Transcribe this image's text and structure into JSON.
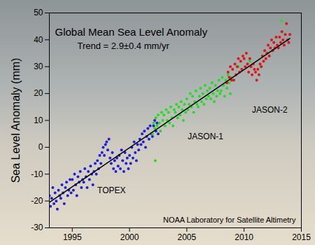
{
  "chart_data": {
    "type": "scatter",
    "title": "Global Mean Sea Level Anomaly",
    "subtitle": "Trend = 2.9±0.4 mm/yr",
    "ylabel": "Sea Level Anomaly (mm)",
    "annotations": [
      "NOAA Laboratory for Satellite Altimetry"
    ],
    "xlim": [
      1993,
      2015
    ],
    "xticks": [
      1995,
      2000,
      2005,
      2010,
      2015
    ],
    "ylim": [
      -30,
      50
    ],
    "yticks": [
      -30,
      -20,
      -10,
      0,
      10,
      20,
      30,
      40,
      50
    ],
    "grid": false,
    "marker": "circle",
    "series": [
      {
        "name": "TOPEX",
        "color": "#1f1fd6",
        "x": [
          1993.0,
          1993.1,
          1993.2,
          1993.3,
          1993.4,
          1993.5,
          1993.6,
          1993.7,
          1993.8,
          1993.9,
          1994.0,
          1994.1,
          1994.2,
          1994.3,
          1994.4,
          1994.5,
          1994.6,
          1994.7,
          1994.8,
          1994.9,
          1995.0,
          1995.1,
          1995.2,
          1995.3,
          1995.4,
          1995.5,
          1995.6,
          1995.7,
          1995.8,
          1995.9,
          1996.0,
          1996.1,
          1996.2,
          1996.3,
          1996.4,
          1996.5,
          1996.6,
          1996.7,
          1996.8,
          1996.9,
          1997.0,
          1997.1,
          1997.2,
          1997.3,
          1997.4,
          1997.5,
          1997.6,
          1997.7,
          1997.8,
          1997.9,
          1998.0,
          1998.1,
          1998.2,
          1998.3,
          1998.4,
          1998.5,
          1998.6,
          1998.7,
          1998.8,
          1998.9,
          1999.0,
          1999.1,
          1999.2,
          1999.3,
          1999.4,
          1999.5,
          1999.6,
          1999.7,
          1999.8,
          1999.9,
          2000.0,
          2000.1,
          2000.2,
          2000.3,
          2000.4,
          2000.5,
          2000.6,
          2000.7,
          2000.8,
          2000.9,
          2001.0,
          2001.1,
          2001.2,
          2001.3,
          2001.4,
          2001.5,
          2001.6,
          2001.7,
          2001.8,
          2001.9,
          2002.0,
          2002.1,
          2002.2,
          2002.3,
          2002.4,
          2002.5
        ],
        "values": [
          -18,
          -22,
          -19,
          -15,
          -21,
          -17,
          -20,
          -23,
          -16,
          -18,
          -19,
          -14,
          -17,
          -21,
          -15,
          -13,
          -18,
          -16,
          -12,
          -17,
          -12,
          -16,
          -10,
          -14,
          -18,
          -11,
          -13,
          -9,
          -15,
          -12,
          -13,
          -8,
          -11,
          -15,
          -9,
          -12,
          -7,
          -10,
          -14,
          -9,
          -6,
          -10,
          -5,
          -8,
          -3,
          -6,
          -2,
          0,
          -3,
          1,
          2,
          -1,
          3,
          -4,
          -6,
          -2,
          -8,
          -5,
          -9,
          -4,
          -7,
          -3,
          -8,
          -1,
          -5,
          -9,
          -2,
          -6,
          -4,
          -8,
          -3,
          -6,
          0,
          -4,
          2,
          -2,
          -5,
          1,
          -1,
          3,
          1,
          5,
          2,
          6,
          0,
          4,
          7,
          3,
          8,
          5,
          4,
          8,
          10,
          6,
          9,
          5
        ]
      },
      {
        "name": "JASON-1",
        "color": "#22dd22",
        "x": [
          2002.0,
          2002.1,
          2002.2,
          2002.25,
          2002.3,
          2002.4,
          2002.5,
          2002.6,
          2002.7,
          2002.8,
          2002.9,
          2003.0,
          2003.1,
          2003.2,
          2003.3,
          2003.4,
          2003.5,
          2003.6,
          2003.7,
          2003.8,
          2003.9,
          2004.0,
          2004.1,
          2004.2,
          2004.3,
          2004.4,
          2004.5,
          2004.6,
          2004.7,
          2004.8,
          2004.9,
          2005.0,
          2005.1,
          2005.2,
          2005.3,
          2005.4,
          2005.5,
          2005.6,
          2005.7,
          2005.8,
          2005.9,
          2006.0,
          2006.1,
          2006.2,
          2006.3,
          2006.4,
          2006.5,
          2006.6,
          2006.7,
          2006.8,
          2006.9,
          2007.0,
          2007.1,
          2007.2,
          2007.3,
          2007.4,
          2007.5,
          2007.6,
          2007.7,
          2007.8,
          2007.9,
          2008.0,
          2008.1,
          2008.2,
          2008.3,
          2008.4,
          2008.5,
          2008.6,
          2008.7,
          2008.8,
          2008.9,
          2009.0,
          2009.5,
          2010.5,
          2011.5,
          2012.5,
          2013.3
        ],
        "values": [
          5,
          9,
          7,
          -5,
          11,
          8,
          12,
          9,
          6,
          13,
          10,
          12,
          8,
          14,
          10,
          13,
          9,
          15,
          11,
          8,
          14,
          13,
          16,
          11,
          15,
          12,
          17,
          14,
          10,
          16,
          13,
          18,
          14,
          16,
          20,
          15,
          19,
          13,
          17,
          21,
          16,
          15,
          19,
          22,
          17,
          20,
          16,
          23,
          18,
          21,
          19,
          22,
          18,
          24,
          20,
          17,
          23,
          19,
          21,
          25,
          20,
          21,
          26,
          23,
          19,
          25,
          22,
          27,
          24,
          20,
          26,
          25,
          30,
          32,
          30,
          36,
          47
        ]
      },
      {
        "name": "JASON-2",
        "color": "#e01414",
        "x": [
          2008.5,
          2008.6,
          2008.7,
          2008.8,
          2008.9,
          2009.0,
          2009.1,
          2009.2,
          2009.3,
          2009.4,
          2009.5,
          2009.6,
          2009.7,
          2009.8,
          2009.9,
          2010.0,
          2010.1,
          2010.2,
          2010.3,
          2010.4,
          2010.5,
          2010.6,
          2010.7,
          2010.8,
          2010.9,
          2011.0,
          2011.1,
          2011.2,
          2011.3,
          2011.4,
          2011.5,
          2011.6,
          2011.7,
          2011.8,
          2011.9,
          2012.0,
          2012.1,
          2012.2,
          2012.3,
          2012.4,
          2012.5,
          2012.6,
          2012.7,
          2012.8,
          2012.9,
          2013.0,
          2013.1,
          2013.2,
          2013.3,
          2013.4,
          2013.5,
          2013.6,
          2013.7,
          2013.8,
          2013.9,
          2014.0
        ],
        "values": [
          24,
          28,
          26,
          30,
          25,
          29,
          25,
          31,
          27,
          30,
          33,
          28,
          32,
          29,
          34,
          33,
          30,
          35,
          31,
          28,
          33,
          30,
          27,
          31,
          29,
          28,
          25,
          29,
          27,
          31,
          30,
          34,
          32,
          36,
          33,
          35,
          38,
          34,
          37,
          40,
          36,
          39,
          37,
          41,
          38,
          37,
          41,
          39,
          43,
          40,
          38,
          42,
          46,
          40,
          39,
          42
        ]
      }
    ],
    "trend": {
      "color": "#000000",
      "x": [
        1993,
        2014
      ],
      "values": [
        -20.5,
        40.5
      ]
    }
  }
}
